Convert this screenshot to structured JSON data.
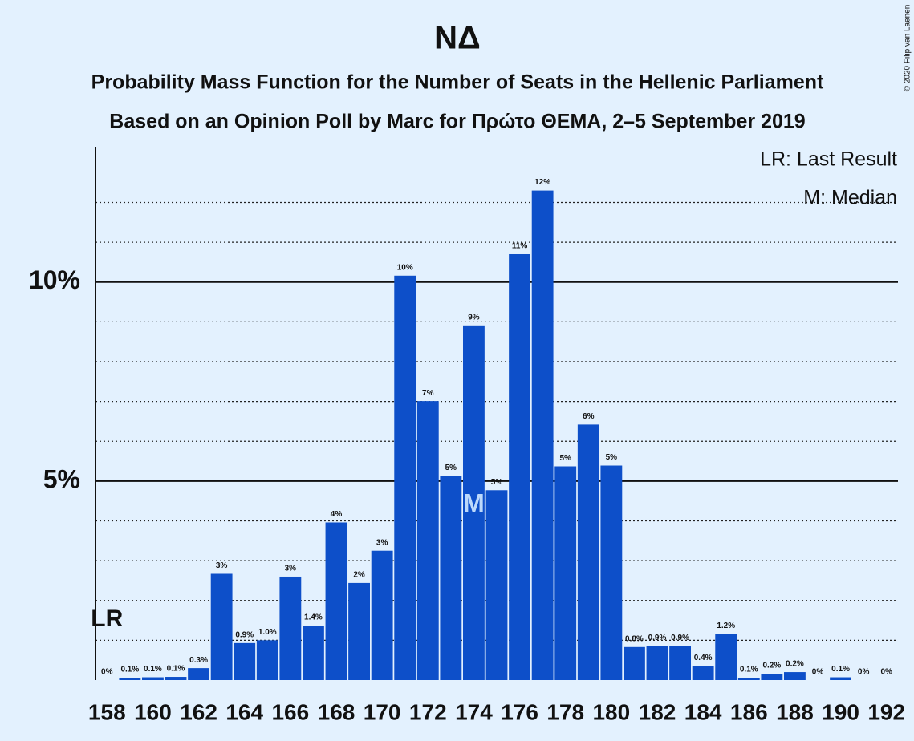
{
  "chart_data": {
    "type": "bar",
    "title": "ΝΔ",
    "subtitle": "Probability Mass Function for the Number of Seats in the Hellenic Parliament",
    "subtitle2": "Based on an Opinion Poll by Marc for Πρώτο ΘΕΜΑ, 2–5 September 2019",
    "copyright": "© 2020 Filip van Laenen",
    "legend": [
      "LR: Last Result",
      "M: Median"
    ],
    "last_result": {
      "label": "LR",
      "category": 158
    },
    "median": {
      "label": "M",
      "category": 174
    },
    "categories": [
      158,
      null,
      160,
      null,
      162,
      null,
      164,
      null,
      166,
      null,
      168,
      null,
      170,
      null,
      172,
      null,
      174,
      null,
      176,
      null,
      178,
      null,
      180,
      null,
      182,
      null,
      184,
      null,
      186,
      null,
      188,
      null,
      190,
      null,
      192
    ],
    "values": [
      0,
      0.06,
      0.07,
      0.08,
      0.3,
      2.67,
      0.93,
      1.0,
      2.6,
      1.37,
      3.96,
      2.44,
      3.25,
      10.16,
      7.01,
      5.13,
      8.91,
      4.77,
      10.7,
      12.3,
      5.37,
      6.42,
      5.39,
      0.83,
      0.86,
      0.86,
      0.36,
      1.16,
      0.06,
      0.16,
      0.2,
      0,
      0.07,
      0,
      0
    ],
    "value_labels": [
      "0%",
      "0.1%",
      "0.1%",
      "0.1%",
      "0.3%",
      "3%",
      "0.9%",
      "1.0%",
      "3%",
      "1.4%",
      "4%",
      "2%",
      "3%",
      "10%",
      "7%",
      "5%",
      "9%",
      "5%",
      "11%",
      "12%",
      "5%",
      "6%",
      "5%",
      "0.8%",
      "0.9%",
      "0.9%",
      "0.4%",
      "1.2%",
      "0.1%",
      "0.2%",
      "0.2%",
      "0%",
      "0.1%",
      "0%",
      "0%"
    ],
    "color": "#0d4fc9",
    "ylim": [
      0,
      13.4
    ],
    "yticks": [
      {
        "value": 5,
        "label": "5%"
      },
      {
        "value": 10,
        "label": "10%"
      }
    ],
    "minor_yticks": [
      1,
      2,
      3,
      4,
      6,
      7,
      8,
      9,
      11,
      12
    ],
    "grid": true
  }
}
